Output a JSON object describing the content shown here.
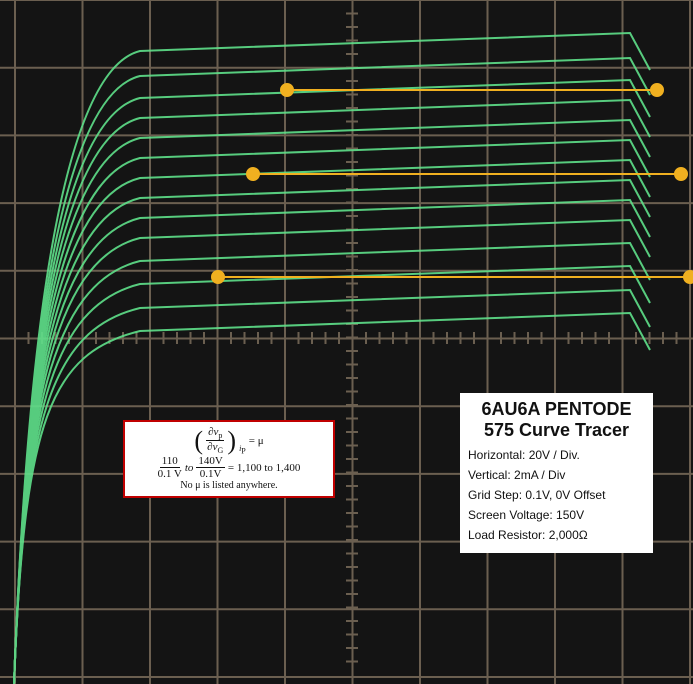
{
  "info_box": {
    "title": "6AU6A PENTODE",
    "subtitle": "575 Curve Tracer",
    "lines": [
      "Horizontal: 20V / Div.",
      "Vertical: 2mA / Div",
      "Grid Step: 0.1V, 0V Offset",
      "Screen Voltage: 150V",
      "Load Resistor: 2,000Ω"
    ]
  },
  "formula_box": {
    "derivative": {
      "numerator": "∂v",
      "numerator_sub": "p",
      "denominator": "∂v",
      "denominator_sub": "G",
      "held": "i",
      "held_sub": "P",
      "equals": "= μ"
    },
    "estimate": {
      "low_num": "110",
      "low_den": "0.1 V",
      "to": "to",
      "high_num": "140V",
      "high_den": "0.1V",
      "result": "= 1,100 to 1,400"
    },
    "note": "No μ is listed anywhere."
  }
}
